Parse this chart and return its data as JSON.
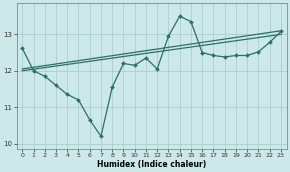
{
  "title": "",
  "xlabel": "Humidex (Indice chaleur)",
  "ylabel": "",
  "bg_color": "#cce8e8",
  "line_color": "#2e6e6a",
  "grid_color": "#aacece",
  "x_data": [
    0,
    1,
    2,
    3,
    4,
    5,
    6,
    7,
    8,
    9,
    10,
    11,
    12,
    13,
    14,
    15,
    16,
    17,
    18,
    19,
    20,
    21,
    22,
    23
  ],
  "y_curve": [
    12.62,
    12.0,
    11.85,
    11.6,
    11.35,
    11.2,
    10.65,
    10.2,
    11.55,
    12.2,
    12.15,
    12.35,
    12.05,
    12.95,
    13.5,
    13.35,
    12.5,
    12.42,
    12.38,
    12.42,
    12.42,
    12.52,
    12.78,
    13.08
  ],
  "line1_x": [
    0,
    23
  ],
  "line1_y": [
    12.05,
    13.1
  ],
  "line2_x": [
    0,
    23
  ],
  "line2_y": [
    12.0,
    13.0
  ],
  "ylim": [
    9.85,
    13.85
  ],
  "xlim": [
    -0.5,
    23.5
  ],
  "yticks": [
    10,
    11,
    12,
    13
  ],
  "xticks": [
    0,
    1,
    2,
    3,
    4,
    5,
    6,
    7,
    8,
    9,
    10,
    11,
    12,
    13,
    14,
    15,
    16,
    17,
    18,
    19,
    20,
    21,
    22,
    23
  ]
}
